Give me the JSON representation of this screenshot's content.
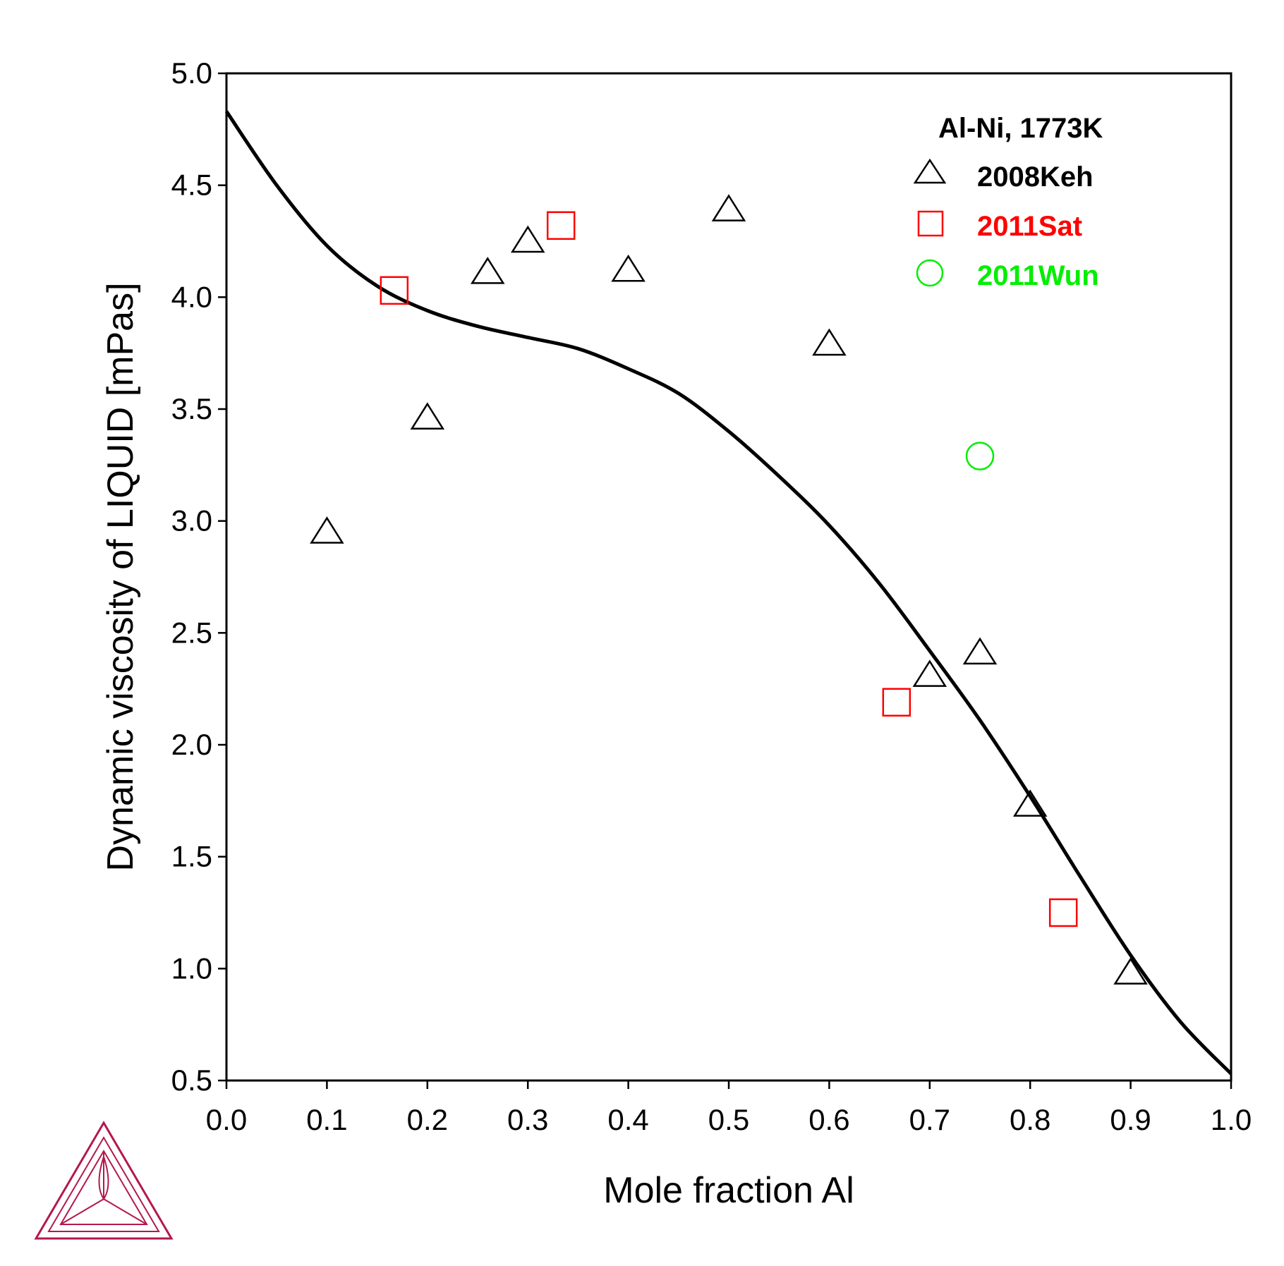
{
  "chart_data": {
    "type": "scatter",
    "xlabel": "Mole fraction Al",
    "ylabel": "Dynamic viscosity of LIQUID [mPas]",
    "xlim": [
      0.0,
      1.0
    ],
    "ylim": [
      0.5,
      5.0
    ],
    "x_ticks": [
      "0.0",
      "0.1",
      "0.2",
      "0.3",
      "0.4",
      "0.5",
      "0.6",
      "0.7",
      "0.8",
      "0.9",
      "1.0"
    ],
    "y_ticks": [
      "0.5",
      "1.0",
      "1.5",
      "2.0",
      "2.5",
      "3.0",
      "3.5",
      "4.0",
      "4.5",
      "5.0"
    ],
    "grid": false,
    "legend_position": "top-right",
    "legend_title": "Al-Ni, 1773K",
    "series": [
      {
        "name": "2008Keh",
        "marker": "triangle",
        "color": "#000000",
        "points": [
          [
            0.1,
            2.95
          ],
          [
            0.2,
            3.46
          ],
          [
            0.26,
            4.11
          ],
          [
            0.3,
            4.25
          ],
          [
            0.4,
            4.12
          ],
          [
            0.5,
            4.39
          ],
          [
            0.6,
            3.79
          ],
          [
            0.7,
            2.31
          ],
          [
            0.75,
            2.41
          ],
          [
            0.8,
            1.73
          ],
          [
            0.9,
            0.98
          ]
        ]
      },
      {
        "name": "2011Sat",
        "marker": "square",
        "color": "#ff0000",
        "points": [
          [
            0.167,
            4.03
          ],
          [
            0.333,
            4.32
          ],
          [
            0.667,
            2.19
          ],
          [
            0.833,
            1.25
          ]
        ]
      },
      {
        "name": "2011Wun",
        "marker": "circle",
        "color": "#00ee00",
        "points": [
          [
            0.75,
            3.29
          ]
        ]
      }
    ],
    "line": {
      "type": "line",
      "color": "#000000",
      "points": [
        [
          0.0,
          4.83
        ],
        [
          0.05,
          4.5
        ],
        [
          0.1,
          4.23
        ],
        [
          0.15,
          4.05
        ],
        [
          0.2,
          3.94
        ],
        [
          0.25,
          3.87
        ],
        [
          0.3,
          3.82
        ],
        [
          0.35,
          3.77
        ],
        [
          0.4,
          3.68
        ],
        [
          0.45,
          3.57
        ],
        [
          0.5,
          3.4
        ],
        [
          0.55,
          3.2
        ],
        [
          0.6,
          2.98
        ],
        [
          0.65,
          2.72
        ],
        [
          0.7,
          2.42
        ],
        [
          0.75,
          2.11
        ],
        [
          0.8,
          1.77
        ],
        [
          0.85,
          1.41
        ],
        [
          0.9,
          1.06
        ],
        [
          0.95,
          0.76
        ],
        [
          1.0,
          0.53
        ]
      ]
    }
  }
}
